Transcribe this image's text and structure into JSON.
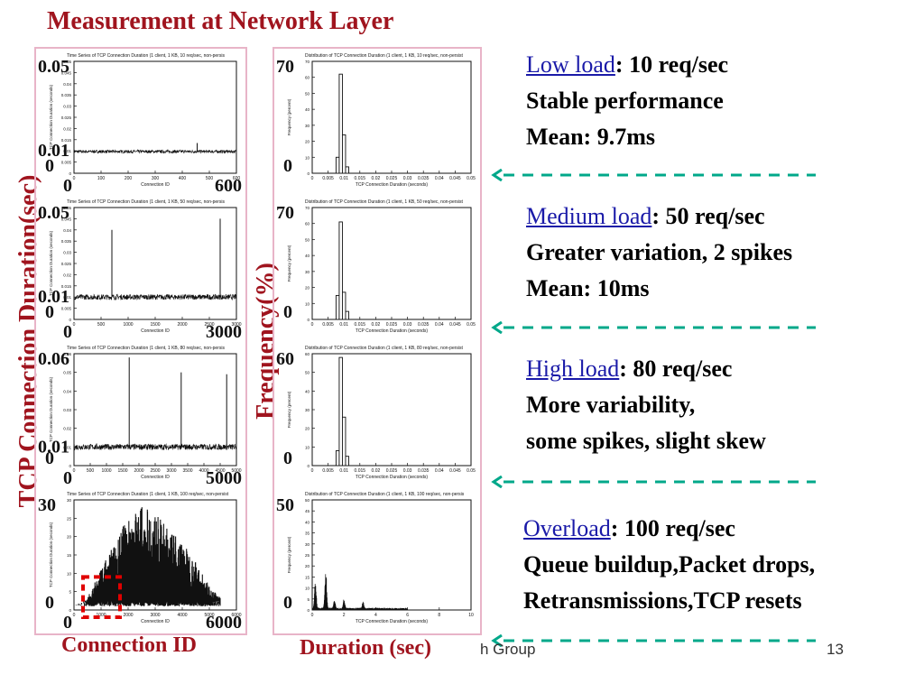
{
  "slide": {
    "title": "Measurement at Network Layer",
    "ylabel_left": "TCP Connection Duration(sec)",
    "ylabel_right": "Frequency(%)",
    "xlabel_left": "Connection ID",
    "xlabel_right": "Duration (sec)",
    "footer_fragment": "h Group",
    "page_number": "13",
    "colors": {
      "title": "#a0141e",
      "link": "#1a1aa8",
      "arrow": "#00a88a",
      "highlight_box": "#e00000",
      "panel_border": "#e8b4c8"
    }
  },
  "notes": [
    {
      "link": "Low load",
      "rest": ": 10 req/sec",
      "lines": [
        "Stable performance",
        "Mean: 9.7ms"
      ]
    },
    {
      "link": "Medium load",
      "rest": ": 50 req/sec",
      "lines": [
        "Greater variation, 2 spikes",
        "Mean: 10ms"
      ]
    },
    {
      "link": "High load",
      "rest": ": 80 req/sec",
      "lines": [
        "More variability,",
        "some spikes, slight skew"
      ]
    },
    {
      "link": "Overload",
      "rest": ": 100 req/sec",
      "lines": [
        "Queue buildup,Packet drops,",
        "Retransmissions,TCP resets"
      ]
    }
  ],
  "chart_data": [
    {
      "type": "line",
      "title": "Time Series of TCP Connection Duration (1 client, 1 KB, 10 req/sec, non-persis",
      "xlabel": "Connection ID",
      "ylabel": "TCP Connection Duration (seconds)",
      "xlim": [
        0,
        600
      ],
      "ylim": [
        0,
        0.05
      ],
      "xticks": [
        "0",
        "100",
        "200",
        "300",
        "400",
        "500",
        "600"
      ],
      "yticks": [
        "0",
        "0.005",
        "0.01",
        "0.015",
        "0.02",
        "0.025",
        "0.03",
        "0.035",
        "0.04",
        "0.045",
        "0.05"
      ],
      "big_labels": {
        "y_top": "0.05",
        "y_mid": "0.01",
        "y_zero": "0",
        "x_zero": "0",
        "x_max": "600"
      },
      "baseline": 0.0097,
      "noise": 0.0007,
      "spikes": [
        {
          "x": 455,
          "y": 0.0135
        }
      ]
    },
    {
      "type": "bar",
      "title": "Distribution of TCP Connection Duration (1 client, 1 KB, 10 req/sec, non-persist",
      "xlabel": "TCP Connection Duration (seconds)",
      "ylabel": "Frequency (percent)",
      "xlim": [
        0,
        0.05
      ],
      "ylim": [
        0,
        70
      ],
      "xticks": [
        "0",
        "0.005",
        "0.01",
        "0.015",
        "0.02",
        "0.025",
        "0.03",
        "0.035",
        "0.04",
        "0.045",
        "0.05"
      ],
      "yticks": [
        "0",
        "10",
        "20",
        "30",
        "40",
        "50",
        "60",
        "70"
      ],
      "big_labels": {
        "y_top": "70",
        "y_zero": "0"
      },
      "bin_width": 0.001,
      "bins": [
        {
          "x": 0.008,
          "y": 10
        },
        {
          "x": 0.009,
          "y": 62
        },
        {
          "x": 0.01,
          "y": 24
        },
        {
          "x": 0.011,
          "y": 4
        }
      ]
    },
    {
      "type": "line",
      "title": "Time Series of TCP Connection Duration (1 client, 1 KB, 50 req/sec, non-persis",
      "xlabel": "Connection ID",
      "ylabel": "TCP Connection Duration (seconds)",
      "xlim": [
        0,
        3000
      ],
      "ylim": [
        0,
        0.05
      ],
      "xticks": [
        "0",
        "500",
        "1000",
        "1500",
        "2000",
        "2500",
        "3000"
      ],
      "yticks": [
        "0",
        "0.005",
        "0.01",
        "0.015",
        "0.02",
        "0.025",
        "0.03",
        "0.035",
        "0.04",
        "0.045",
        "0.05"
      ],
      "big_labels": {
        "y_top": "0.05",
        "y_mid": "0.01",
        "y_zero": "0",
        "x_zero": "0",
        "x_max": "3000"
      },
      "baseline": 0.01,
      "noise": 0.0012,
      "spikes": [
        {
          "x": 700,
          "y": 0.04
        },
        {
          "x": 2700,
          "y": 0.045
        }
      ]
    },
    {
      "type": "bar",
      "title": "Distribution of TCP Connection Duration (1 client, 1 KB, 50 req/sec, non-persist",
      "xlabel": "TCP Connection Duration (seconds)",
      "ylabel": "Frequency (percent)",
      "xlim": [
        0,
        0.05
      ],
      "ylim": [
        0,
        70
      ],
      "xticks": [
        "0",
        "0.005",
        "0.01",
        "0.015",
        "0.02",
        "0.025",
        "0.03",
        "0.035",
        "0.04",
        "0.045",
        "0.05"
      ],
      "yticks": [
        "0",
        "10",
        "20",
        "30",
        "40",
        "50",
        "60",
        "70"
      ],
      "big_labels": {
        "y_top": "70",
        "y_zero": "0"
      },
      "bin_width": 0.001,
      "bins": [
        {
          "x": 0.008,
          "y": 15
        },
        {
          "x": 0.009,
          "y": 61
        },
        {
          "x": 0.01,
          "y": 17
        },
        {
          "x": 0.011,
          "y": 5
        }
      ]
    },
    {
      "type": "line",
      "title": "Time Series of TCP Connection Duration (1 client, 1 KB, 80 req/sec, non-persis",
      "xlabel": "Connection ID",
      "ylabel": "TCP Connection Duration (seconds)",
      "xlim": [
        0,
        5000
      ],
      "ylim": [
        0,
        0.06
      ],
      "xticks": [
        "0",
        "500",
        "1000",
        "1500",
        "2000",
        "2500",
        "3000",
        "3500",
        "4000",
        "4500",
        "5000"
      ],
      "yticks": [
        "0",
        "0.01",
        "0.02",
        "0.03",
        "0.04",
        "0.05",
        "0.06"
      ],
      "big_labels": {
        "y_top": "0.06",
        "y_mid": "0.01",
        "y_zero": "0",
        "x_zero": "0",
        "x_max": "5000"
      },
      "baseline": 0.01,
      "noise": 0.0016,
      "spikes": [
        {
          "x": 1700,
          "y": 0.058
        },
        {
          "x": 3300,
          "y": 0.05
        },
        {
          "x": 4700,
          "y": 0.049
        }
      ]
    },
    {
      "type": "bar",
      "title": "Distribution of TCP Connection Duration (1 client, 1 KB, 80 req/sec, non-persist",
      "xlabel": "TCP Connection Duration (seconds)",
      "ylabel": "Frequency (percent)",
      "xlim": [
        0,
        0.05
      ],
      "ylim": [
        0,
        60
      ],
      "xticks": [
        "0",
        "0.005",
        "0.01",
        "0.015",
        "0.02",
        "0.025",
        "0.03",
        "0.035",
        "0.04",
        "0.045",
        "0.05"
      ],
      "yticks": [
        "0",
        "10",
        "20",
        "30",
        "40",
        "50",
        "60"
      ],
      "big_labels": {
        "y_top": "60",
        "y_zero": "0"
      },
      "bin_width": 0.001,
      "bins": [
        {
          "x": 0.008,
          "y": 8
        },
        {
          "x": 0.009,
          "y": 58
        },
        {
          "x": 0.01,
          "y": 26
        },
        {
          "x": 0.011,
          "y": 5
        }
      ]
    },
    {
      "type": "area",
      "title": "Time Series of TCP Connection Duration (1 client, 1 KB, 100 req/sec, non-persist",
      "xlabel": "Connection ID",
      "ylabel": "TCP Connection Duration (seconds)",
      "xlim": [
        0,
        6000
      ],
      "ylim": [
        0,
        30
      ],
      "xticks": [
        "0",
        "1000",
        "2000",
        "3000",
        "4000",
        "5000",
        "6000"
      ],
      "yticks": [
        "0",
        "5",
        "10",
        "15",
        "20",
        "25",
        "30"
      ],
      "big_labels": {
        "y_top": "30",
        "y_zero": "0",
        "x_zero": "0",
        "x_max": "6000"
      },
      "envelope": [
        [
          0,
          1
        ],
        [
          500,
          3
        ],
        [
          1000,
          10
        ],
        [
          1500,
          17
        ],
        [
          2000,
          23
        ],
        [
          2500,
          26
        ],
        [
          3000,
          24
        ],
        [
          3500,
          20
        ],
        [
          4000,
          17
        ],
        [
          4500,
          12
        ],
        [
          5000,
          6
        ],
        [
          5400,
          3
        ]
      ],
      "peak": 28,
      "highlight_box": {
        "xlim": [
          0,
          1500
        ],
        "ylim": [
          0,
          9
        ]
      }
    },
    {
      "type": "bar",
      "title": "Distribution of TCP Connection Duration (1 client, 1 KB, 100 req/sec, non-persis",
      "xlabel": "TCP Connection Duration (seconds)",
      "ylabel": "Frequency (percent)",
      "xlim": [
        0,
        10
      ],
      "ylim": [
        0,
        50
      ],
      "xticks": [
        "0",
        "2",
        "4",
        "6",
        "8",
        "10"
      ],
      "yticks": [
        "0",
        "5",
        "10",
        "15",
        "20",
        "25",
        "30",
        "35",
        "40",
        "45",
        "50"
      ],
      "big_labels": {
        "y_top": "50",
        "y_zero": "0"
      },
      "bin_width": 0.05,
      "peaks": [
        {
          "x": 0.2,
          "y": 13
        },
        {
          "x": 0.85,
          "y": 20
        },
        {
          "x": 1.4,
          "y": 4
        },
        {
          "x": 2.0,
          "y": 4
        },
        {
          "x": 3.2,
          "y": 3
        }
      ]
    }
  ]
}
